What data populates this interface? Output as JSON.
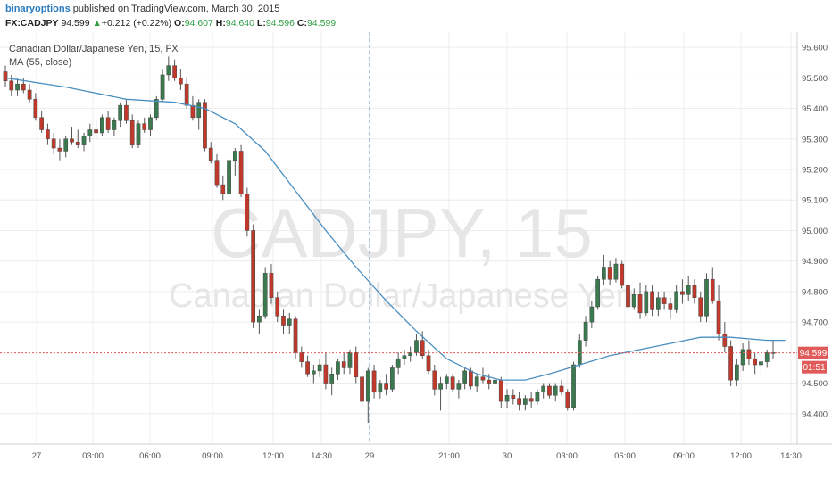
{
  "header": {
    "author": "binaryoptions",
    "published_text": "published on TradingView.com, March 30, 2015",
    "symbol": "FX:CADJPY",
    "last": "94.599",
    "change_arrow": "▲",
    "change": "+0.212 (+0.22%)",
    "o_label": "O:",
    "o_value": "94.607",
    "h_label": "H:",
    "h_value": "94.640",
    "l_label": "L:",
    "l_value": "94.596",
    "c_label": "C:",
    "c_value": "94.599"
  },
  "colors": {
    "up": "#3b7a4f",
    "down": "#c0392b",
    "ma": "#4a8fc1",
    "price_line": "#e05a5a",
    "grid": "#ececec",
    "axis_text": "#555555"
  },
  "chart_data": {
    "type": "candlestick",
    "title": "Canadian Dollar/Japanese Yen, 15, FX",
    "indicator_label": "MA (55, close)",
    "watermark_symbol": "CADJPY, 15",
    "watermark_name": "Canadian Dollar/Japanese Yen",
    "ylim": [
      94.3,
      95.65
    ],
    "y_ticks": [
      "95.600",
      "95.500",
      "95.400",
      "95.300",
      "95.200",
      "95.100",
      "95.000",
      "94.900",
      "94.800",
      "94.700",
      "94.500",
      "94.400"
    ],
    "x_ticks": [
      "27",
      "03:00",
      "06:00",
      "09:00",
      "12:00",
      "14:30",
      "29",
      "21:00",
      "30",
      "03:00",
      "06:00",
      "09:00",
      "12:00",
      "14:30"
    ],
    "current_price_label": "94.599",
    "countdown_label": "01:51",
    "current_price": 94.599,
    "candles": [
      [
        95.52,
        95.54,
        95.47,
        95.49
      ],
      [
        95.49,
        95.51,
        95.44,
        95.46
      ],
      [
        95.46,
        95.5,
        95.44,
        95.48
      ],
      [
        95.48,
        95.5,
        95.45,
        95.46
      ],
      [
        95.46,
        95.48,
        95.42,
        95.43
      ],
      [
        95.43,
        95.45,
        95.36,
        95.37
      ],
      [
        95.37,
        95.39,
        95.32,
        95.33
      ],
      [
        95.33,
        95.35,
        95.28,
        95.3
      ],
      [
        95.3,
        95.32,
        95.25,
        95.27
      ],
      [
        95.27,
        95.3,
        95.23,
        95.26
      ],
      [
        95.26,
        95.31,
        95.24,
        95.3
      ],
      [
        95.3,
        95.34,
        95.28,
        95.29
      ],
      [
        95.29,
        95.33,
        95.27,
        95.28
      ],
      [
        95.28,
        95.32,
        95.26,
        95.31
      ],
      [
        95.31,
        95.35,
        95.29,
        95.33
      ],
      [
        95.33,
        95.36,
        95.3,
        95.32
      ],
      [
        95.32,
        95.38,
        95.31,
        95.37
      ],
      [
        95.37,
        95.39,
        95.32,
        95.33
      ],
      [
        95.33,
        95.37,
        95.31,
        95.36
      ],
      [
        95.36,
        95.42,
        95.34,
        95.41
      ],
      [
        95.41,
        95.43,
        95.35,
        95.36
      ],
      [
        95.36,
        95.38,
        95.27,
        95.28
      ],
      [
        95.28,
        95.36,
        95.27,
        95.35
      ],
      [
        95.35,
        95.37,
        95.32,
        95.33
      ],
      [
        95.33,
        95.38,
        95.31,
        95.37
      ],
      [
        95.37,
        95.44,
        95.36,
        95.43
      ],
      [
        95.43,
        95.53,
        95.42,
        95.51
      ],
      [
        95.51,
        95.57,
        95.49,
        95.54
      ],
      [
        95.54,
        95.56,
        95.49,
        95.5
      ],
      [
        95.5,
        95.53,
        95.46,
        95.48
      ],
      [
        95.48,
        95.5,
        95.4,
        95.41
      ],
      [
        95.41,
        95.44,
        95.36,
        95.37
      ],
      [
        95.37,
        95.43,
        95.33,
        95.42
      ],
      [
        95.42,
        95.43,
        95.26,
        95.27
      ],
      [
        95.27,
        95.29,
        95.22,
        95.23
      ],
      [
        95.23,
        95.25,
        95.14,
        95.15
      ],
      [
        95.15,
        95.18,
        95.1,
        95.12
      ],
      [
        95.12,
        95.24,
        95.11,
        95.23
      ],
      [
        95.23,
        95.27,
        95.18,
        95.26
      ],
      [
        95.26,
        95.28,
        95.11,
        95.12
      ],
      [
        95.12,
        95.14,
        94.98,
        95.0
      ],
      [
        95.0,
        95.02,
        94.68,
        94.7
      ],
      [
        94.7,
        94.74,
        94.66,
        94.72
      ],
      [
        94.72,
        94.88,
        94.71,
        94.86
      ],
      [
        94.86,
        94.89,
        94.76,
        94.78
      ],
      [
        94.78,
        94.8,
        94.7,
        94.72
      ],
      [
        94.72,
        94.74,
        94.66,
        94.69
      ],
      [
        94.69,
        94.73,
        94.66,
        94.71
      ],
      [
        94.71,
        94.72,
        94.58,
        94.6
      ],
      [
        94.6,
        94.62,
        94.55,
        94.57
      ],
      [
        94.57,
        94.59,
        94.52,
        94.53
      ],
      [
        94.53,
        94.56,
        94.5,
        94.54
      ],
      [
        94.54,
        94.58,
        94.52,
        94.56
      ],
      [
        94.56,
        94.6,
        94.48,
        94.5
      ],
      [
        94.5,
        94.55,
        94.46,
        94.53
      ],
      [
        94.53,
        94.58,
        94.51,
        94.57
      ],
      [
        94.57,
        94.6,
        94.53,
        94.55
      ],
      [
        94.55,
        94.61,
        94.53,
        94.6
      ],
      [
        94.6,
        94.62,
        94.5,
        94.52
      ],
      [
        94.52,
        94.54,
        94.42,
        94.44
      ],
      [
        94.44,
        94.55,
        94.37,
        94.54
      ],
      [
        94.54,
        94.56,
        94.45,
        94.47
      ],
      [
        94.47,
        94.51,
        94.45,
        94.5
      ],
      [
        94.5,
        94.53,
        94.46,
        94.48
      ],
      [
        94.48,
        94.56,
        94.47,
        94.55
      ],
      [
        94.55,
        94.6,
        94.53,
        94.58
      ],
      [
        94.58,
        94.61,
        94.56,
        94.59
      ],
      [
        94.59,
        94.62,
        94.57,
        94.6
      ],
      [
        94.6,
        94.66,
        94.59,
        94.64
      ],
      [
        94.64,
        94.67,
        94.58,
        94.59
      ],
      [
        94.59,
        94.61,
        94.53,
        94.54
      ],
      [
        94.54,
        94.56,
        94.46,
        94.48
      ],
      [
        94.48,
        94.52,
        94.41,
        94.5
      ],
      [
        94.5,
        94.53,
        94.48,
        94.52
      ],
      [
        94.52,
        94.53,
        94.47,
        94.48
      ],
      [
        94.48,
        94.51,
        94.45,
        94.5
      ],
      [
        94.5,
        94.55,
        94.48,
        94.54
      ],
      [
        94.54,
        94.55,
        94.48,
        94.49
      ],
      [
        94.49,
        94.53,
        94.47,
        94.52
      ],
      [
        94.52,
        94.55,
        94.5,
        94.51
      ],
      [
        94.51,
        94.53,
        94.48,
        94.5
      ],
      [
        94.5,
        94.52,
        94.47,
        94.51
      ],
      [
        94.51,
        94.52,
        94.42,
        94.44
      ],
      [
        94.44,
        94.48,
        94.42,
        94.46
      ],
      [
        94.46,
        94.48,
        94.43,
        94.45
      ],
      [
        94.45,
        94.47,
        94.41,
        94.43
      ],
      [
        94.43,
        94.46,
        94.41,
        94.45
      ],
      [
        94.45,
        94.47,
        94.42,
        94.44
      ],
      [
        94.44,
        94.48,
        94.43,
        94.47
      ],
      [
        94.47,
        94.5,
        94.45,
        94.49
      ],
      [
        94.49,
        94.5,
        94.45,
        94.46
      ],
      [
        94.46,
        94.5,
        94.44,
        94.49
      ],
      [
        94.49,
        94.51,
        94.46,
        94.47
      ],
      [
        94.47,
        94.48,
        94.41,
        94.42
      ],
      [
        94.42,
        94.57,
        94.41,
        94.56
      ],
      [
        94.56,
        94.66,
        94.55,
        94.64
      ],
      [
        94.64,
        94.72,
        94.62,
        94.7
      ],
      [
        94.7,
        94.77,
        94.68,
        94.75
      ],
      [
        94.75,
        94.85,
        94.74,
        94.84
      ],
      [
        94.84,
        94.92,
        94.82,
        94.88
      ],
      [
        94.88,
        94.9,
        94.82,
        94.84
      ],
      [
        94.84,
        94.91,
        94.83,
        94.89
      ],
      [
        94.89,
        94.9,
        94.81,
        94.82
      ],
      [
        94.82,
        94.84,
        94.73,
        94.75
      ],
      [
        94.75,
        94.81,
        94.74,
        94.79
      ],
      [
        94.79,
        94.83,
        94.71,
        94.73
      ],
      [
        94.73,
        94.82,
        94.72,
        94.8
      ],
      [
        94.8,
        94.82,
        94.72,
        94.74
      ],
      [
        94.74,
        94.8,
        94.72,
        94.78
      ],
      [
        94.78,
        94.8,
        94.74,
        94.76
      ],
      [
        94.76,
        94.78,
        94.71,
        94.74
      ],
      [
        94.74,
        94.82,
        94.73,
        94.8
      ],
      [
        94.8,
        94.84,
        94.76,
        94.79
      ],
      [
        94.79,
        94.85,
        94.77,
        94.82
      ],
      [
        94.82,
        94.84,
        94.76,
        94.78
      ],
      [
        94.78,
        94.8,
        94.7,
        94.72
      ],
      [
        94.72,
        94.86,
        94.7,
        94.84
      ],
      [
        94.84,
        94.88,
        94.76,
        94.77
      ],
      [
        94.77,
        94.82,
        94.64,
        94.66
      ],
      [
        94.66,
        94.7,
        94.6,
        94.62
      ],
      [
        94.62,
        94.64,
        94.49,
        94.51
      ],
      [
        94.51,
        94.58,
        94.49,
        94.56
      ],
      [
        94.56,
        94.63,
        94.54,
        94.61
      ],
      [
        94.61,
        94.64,
        94.56,
        94.58
      ],
      [
        94.58,
        94.6,
        94.53,
        94.56
      ],
      [
        94.56,
        94.6,
        94.53,
        94.57
      ],
      [
        94.57,
        94.61,
        94.55,
        94.6
      ],
      [
        94.6,
        94.64,
        94.58,
        94.6
      ]
    ],
    "ma_55": [
      [
        0,
        95.5
      ],
      [
        10,
        95.47
      ],
      [
        20,
        95.43
      ],
      [
        28,
        95.42
      ],
      [
        33,
        95.4
      ],
      [
        38,
        95.35
      ],
      [
        43,
        95.26
      ],
      [
        48,
        95.13
      ],
      [
        53,
        95.0
      ],
      [
        58,
        94.88
      ],
      [
        63,
        94.77
      ],
      [
        68,
        94.67
      ],
      [
        73,
        94.58
      ],
      [
        78,
        94.53
      ],
      [
        82,
        94.51
      ],
      [
        86,
        94.51
      ],
      [
        90,
        94.53
      ],
      [
        95,
        94.56
      ],
      [
        100,
        94.59
      ],
      [
        105,
        94.61
      ],
      [
        110,
        94.63
      ],
      [
        115,
        94.65
      ],
      [
        120,
        94.65
      ],
      [
        126,
        94.64
      ],
      [
        129,
        94.64
      ]
    ]
  }
}
